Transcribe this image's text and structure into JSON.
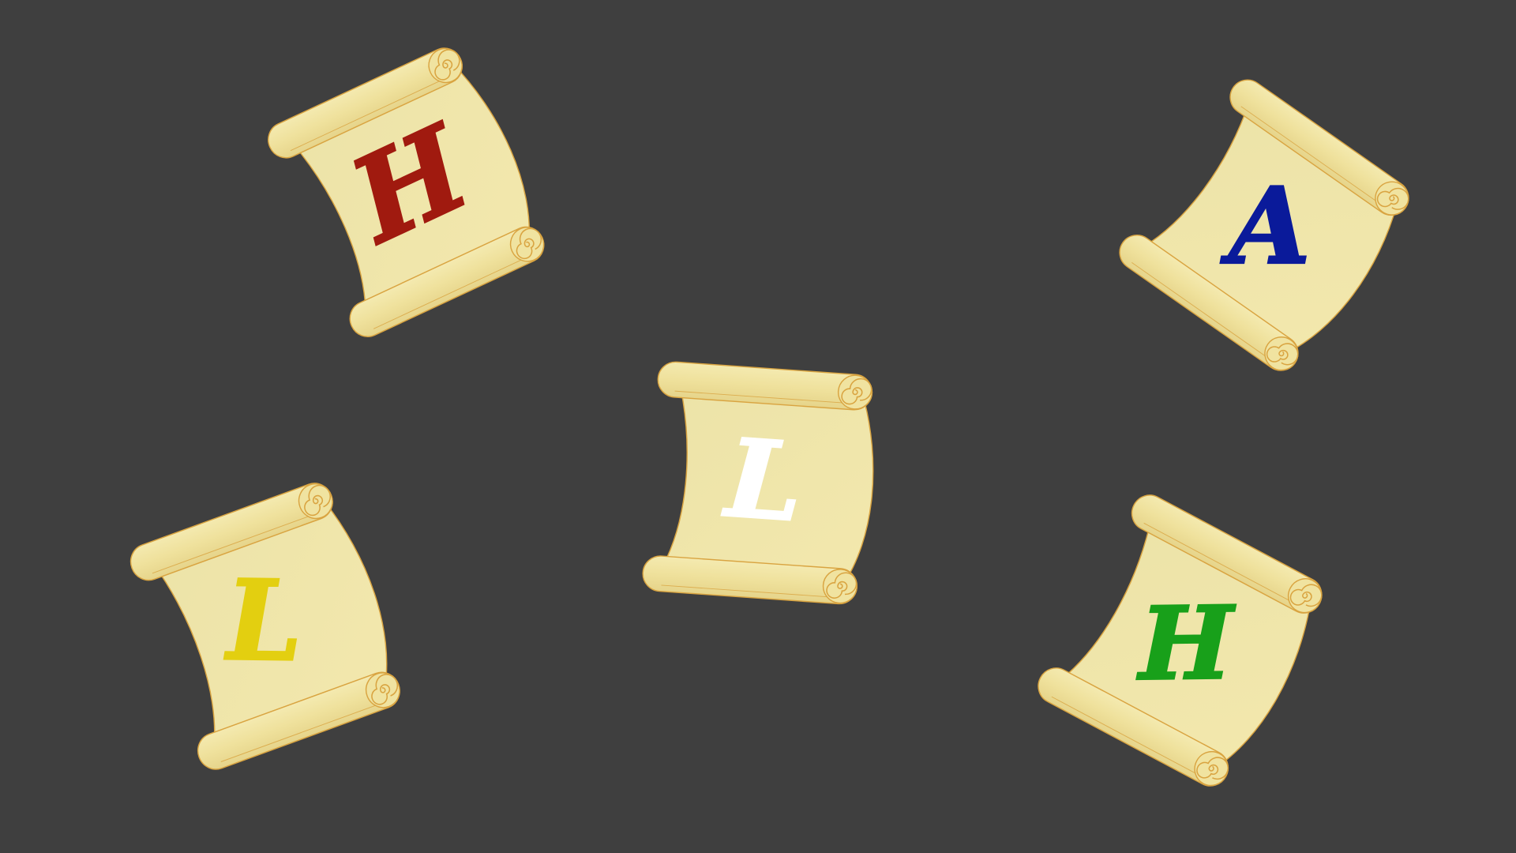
{
  "scene": {
    "background": "#3f3f3f",
    "parchment_color": "#f2e6a6",
    "rod_color": "#efe2a0",
    "edge_color": "#d9a441"
  },
  "scrolls": [
    {
      "id": "red",
      "letter": "H",
      "ink": "#a01a0f"
    },
    {
      "id": "blue",
      "letter": "A",
      "ink": "#0a1a9a"
    },
    {
      "id": "white",
      "letter": "L",
      "ink": "#ffffff"
    },
    {
      "id": "yellow",
      "letter": "L",
      "ink": "#e3cf10"
    },
    {
      "id": "green",
      "letter": "H",
      "ink": "#18a01a"
    }
  ]
}
